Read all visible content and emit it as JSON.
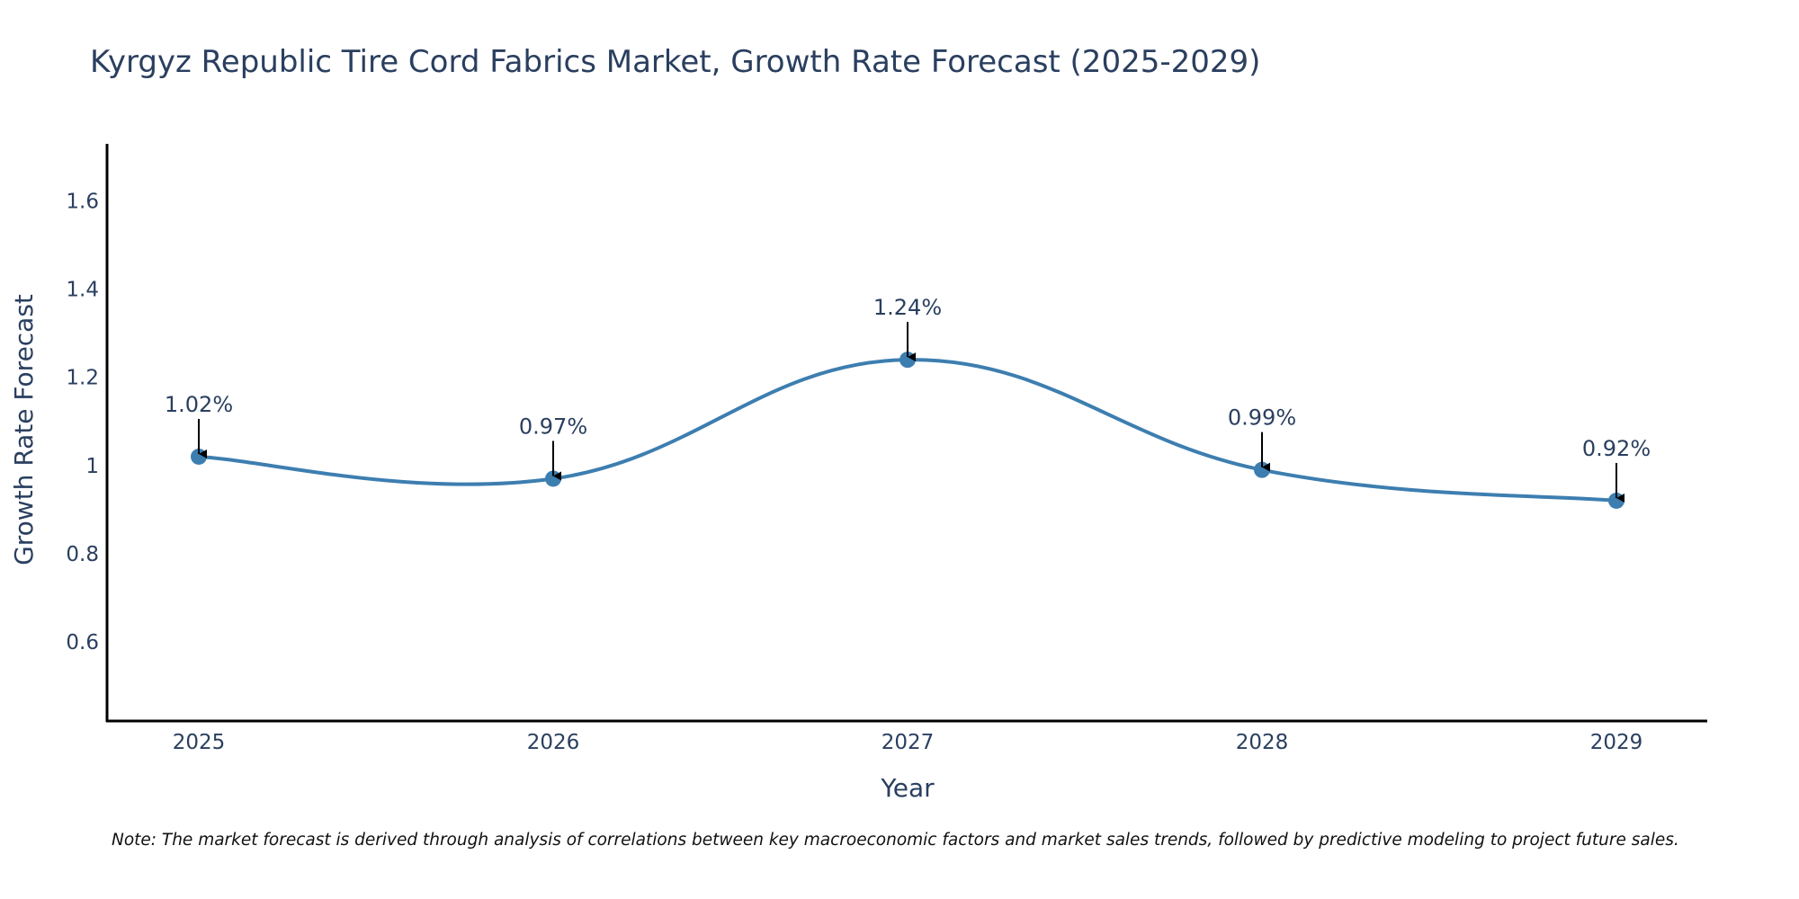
{
  "chart_data": {
    "type": "line",
    "title": "Kyrgyz Republic Tire Cord Fabrics Market, Growth Rate Forecast (2025-2029)",
    "xlabel": "Year",
    "ylabel": "Growth Rate Forecast",
    "categories": [
      "2025",
      "2026",
      "2027",
      "2028",
      "2029"
    ],
    "series": [
      {
        "values": [
          1.02,
          0.97,
          1.24,
          0.99,
          0.92
        ],
        "color": "#3d7eb0",
        "smoothing": "spline"
      }
    ],
    "data_labels": [
      "1.02%",
      "0.97%",
      "1.24%",
      "0.99%",
      "0.92%"
    ],
    "ylim": [
      0.42,
      1.73
    ],
    "yticks": [
      0.6,
      0.8,
      1,
      1.2,
      1.4,
      1.6
    ],
    "ytick_labels": [
      "0.6",
      "0.8",
      "1",
      "1.2",
      "1.4",
      "1.6"
    ],
    "grid": false,
    "annotation_arrows": true,
    "note": "Note: The market forecast is derived through analysis of correlations between key macroeconomic factors and market sales trends, followed by predictive modeling to project future sales."
  }
}
